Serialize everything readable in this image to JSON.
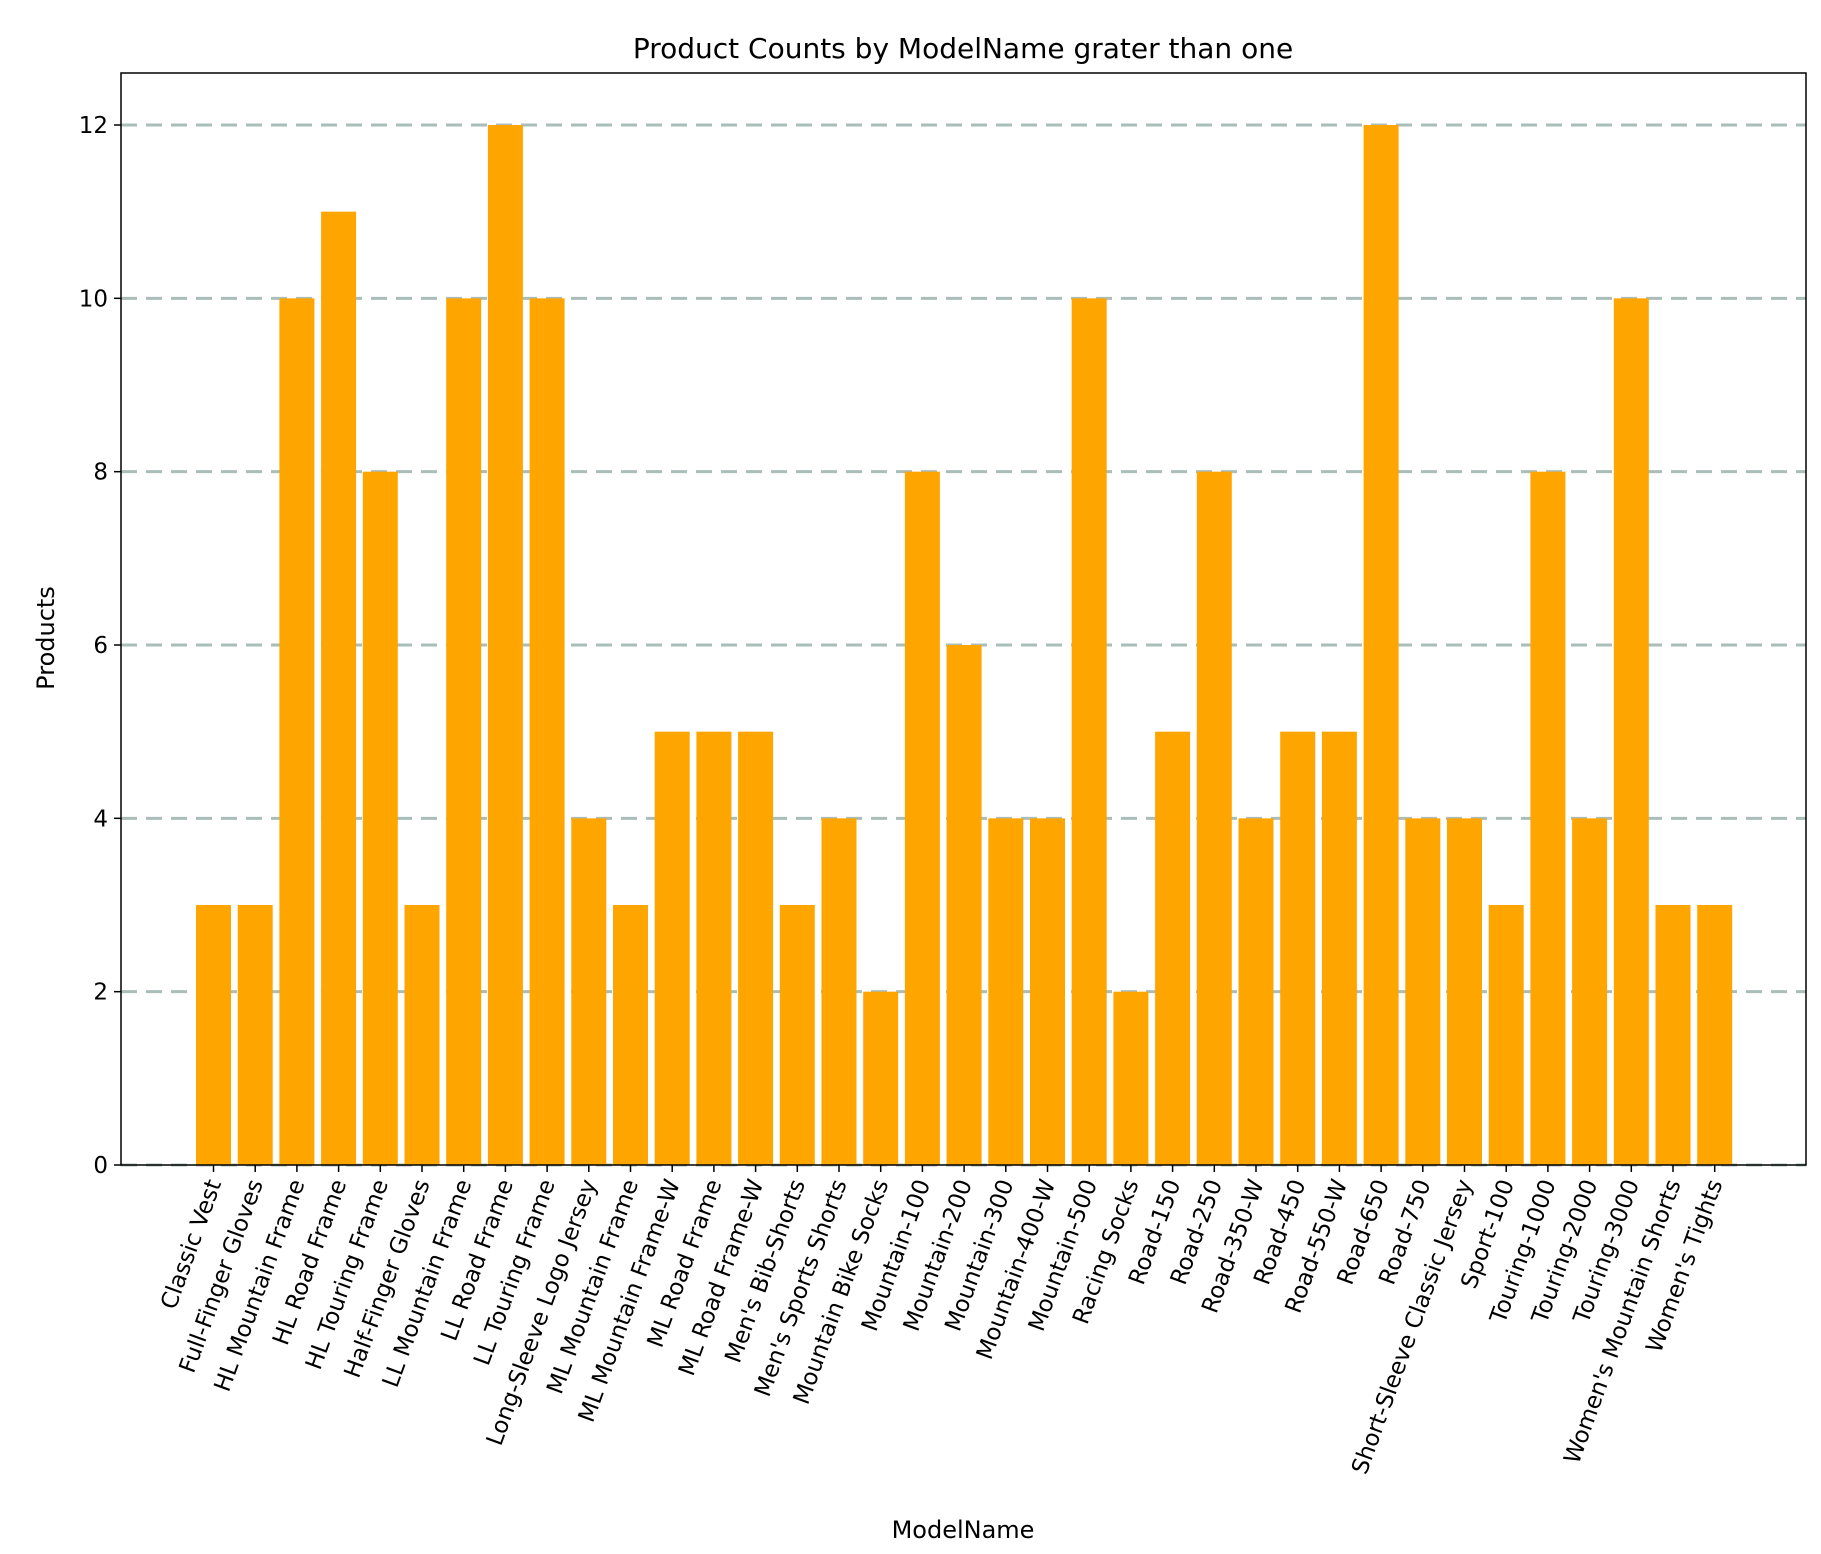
{
  "chart_data": {
    "type": "bar",
    "title": "Product Counts by ModelName grater than one",
    "xlabel": "ModelName",
    "ylabel": "Products",
    "ylim": [
      0,
      12.6
    ],
    "yticks": [
      0,
      2,
      4,
      6,
      8,
      10,
      12
    ],
    "grid": "y-dashed",
    "bar_color": "#FFA500",
    "grid_color": "#A9BDBA",
    "categories": [
      "Classic Vest",
      "Full-Finger Gloves",
      "HL Mountain Frame",
      "HL Road Frame",
      "HL Touring Frame",
      "Half-Finger Gloves",
      "LL Mountain Frame",
      "LL Road Frame",
      "LL Touring Frame",
      "Long-Sleeve Logo Jersey",
      "ML Mountain Frame",
      "ML Mountain Frame-W",
      "ML Road Frame",
      "ML Road Frame-W",
      "Men's Bib-Shorts",
      "Men's Sports Shorts",
      "Mountain Bike Socks",
      "Mountain-100",
      "Mountain-200",
      "Mountain-300",
      "Mountain-400-W",
      "Mountain-500",
      "Racing Socks",
      "Road-150",
      "Road-250",
      "Road-350-W",
      "Road-450",
      "Road-550-W",
      "Road-650",
      "Road-750",
      "Short-Sleeve Classic Jersey",
      "Sport-100",
      "Touring-1000",
      "Touring-2000",
      "Touring-3000",
      "Women's Mountain Shorts",
      "Women's Tights"
    ],
    "values": [
      3,
      3,
      10,
      11,
      8,
      3,
      10,
      12,
      10,
      4,
      3,
      5,
      5,
      5,
      3,
      4,
      2,
      8,
      6,
      4,
      4,
      10,
      2,
      5,
      8,
      4,
      5,
      5,
      12,
      4,
      4,
      3,
      8,
      4,
      10,
      3,
      3
    ]
  }
}
